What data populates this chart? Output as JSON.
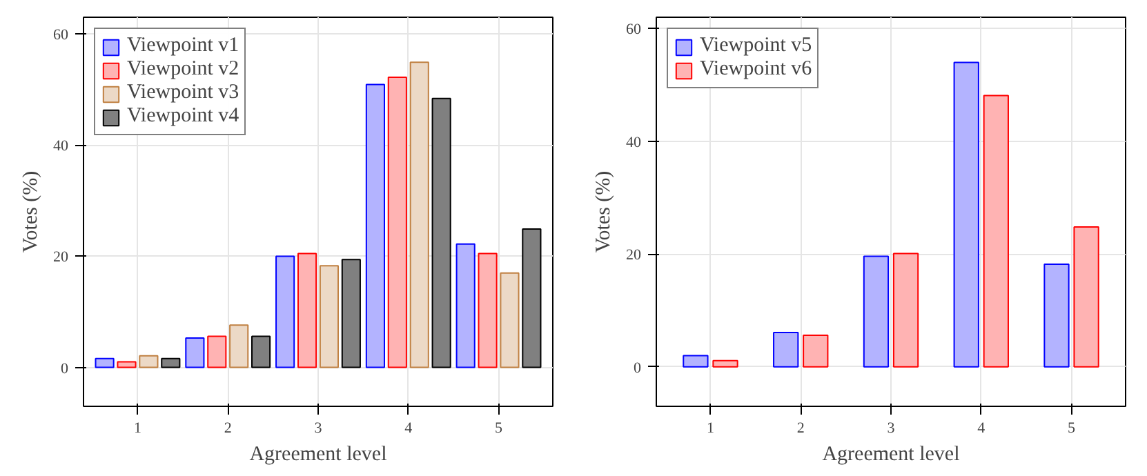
{
  "chart_data": [
    {
      "type": "bar",
      "xlabel": "Agreement level",
      "ylabel": "Votes (%)",
      "x": [
        1,
        2,
        3,
        4,
        5
      ],
      "xlim": [
        0.4,
        5.6
      ],
      "xticks": [
        1,
        2,
        3,
        4,
        5
      ],
      "ylim": [
        -7,
        63
      ],
      "yticks": [
        0,
        20,
        40,
        60
      ],
      "grid": true,
      "legend": "top left",
      "series": [
        {
          "name": "Viewpoint v1",
          "color": "#b3b3ff",
          "values": [
            1.6,
            5.3,
            20.0,
            50.9,
            22.2
          ]
        },
        {
          "name": "Viewpoint v2",
          "color": "#ffb3b3",
          "values": [
            1.0,
            5.6,
            20.5,
            52.2,
            20.5
          ]
        },
        {
          "name": "Viewpoint v3",
          "color": "#ecd9c6",
          "values": [
            2.1,
            7.6,
            18.3,
            54.9,
            17.0
          ]
        },
        {
          "name": "Viewpoint v4",
          "color": "#808080",
          "values": [
            1.6,
            5.6,
            19.4,
            48.4,
            24.9
          ]
        }
      ]
    },
    {
      "type": "bar",
      "xlabel": "Agreement level",
      "ylabel": "Votes (%)",
      "x": [
        1,
        2,
        3,
        4,
        5
      ],
      "xlim": [
        0.4,
        5.6
      ],
      "xticks": [
        1,
        2,
        3,
        4,
        5
      ],
      "ylim": [
        -7,
        62
      ],
      "yticks": [
        0,
        20,
        40,
        60
      ],
      "grid": true,
      "legend": "top left",
      "series": [
        {
          "name": "Viewpoint v5",
          "color": "#b3b3ff",
          "values": [
            2.0,
            6.1,
            19.6,
            54.0,
            18.2
          ]
        },
        {
          "name": "Viewpoint v6",
          "color": "#ffb3b3",
          "values": [
            1.1,
            5.6,
            20.1,
            48.1,
            24.8
          ]
        }
      ]
    }
  ]
}
